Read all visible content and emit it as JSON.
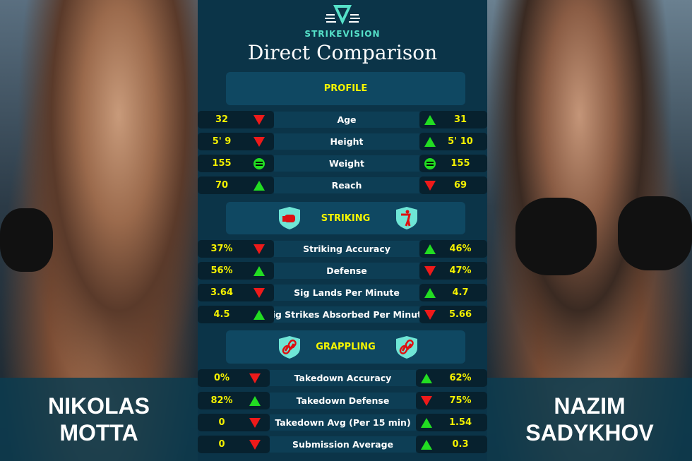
{
  "brand": "STRIKEVISION",
  "title": "Direct Comparison",
  "fighters": {
    "left": {
      "first": "NIKOLAS",
      "last": "MOTTA"
    },
    "right": {
      "first": "NAZIM",
      "last": "SADYKHOV"
    }
  },
  "colors": {
    "panel": "#0b3448",
    "accent": "#55e0c8",
    "value": "#f3f000",
    "better": "#22dd22",
    "worse": "#ee1a1a"
  },
  "sections": [
    {
      "title": "PROFILE",
      "icons": [],
      "rows": [
        {
          "label": "Age",
          "left": "32",
          "left_ind": "down",
          "right": "31",
          "right_ind": "up"
        },
        {
          "label": "Height",
          "left": "5' 9",
          "left_ind": "down",
          "right": "5' 10",
          "right_ind": "up"
        },
        {
          "label": "Weight",
          "left": "155",
          "left_ind": "equal",
          "right": "155",
          "right_ind": "equal"
        },
        {
          "label": "Reach",
          "left": "70",
          "left_ind": "up",
          "right": "69",
          "right_ind": "down"
        }
      ]
    },
    {
      "title": "STRIKING",
      "icons": [
        "boxing-glove-icon",
        "punching-figure-icon"
      ],
      "rows": [
        {
          "label": "Striking Accuracy",
          "left": "37%",
          "left_ind": "down",
          "right": "46%",
          "right_ind": "up"
        },
        {
          "label": "Defense",
          "left": "56%",
          "left_ind": "up",
          "right": "47%",
          "right_ind": "down"
        },
        {
          "label": "Sig Lands Per Minute",
          "left": "3.64",
          "left_ind": "down",
          "right": "4.7",
          "right_ind": "up"
        },
        {
          "label": "Sig Strikes Absorbed Per Minute",
          "left": "4.5",
          "left_ind": "up",
          "right": "5.66",
          "right_ind": "down"
        }
      ]
    },
    {
      "title": "GRAPPLING",
      "icons": [
        "chain-link-icon",
        "chain-link-icon"
      ],
      "rows": [
        {
          "label": "Takedown Accuracy",
          "left": "0%",
          "left_ind": "down",
          "right": "62%",
          "right_ind": "up"
        },
        {
          "label": "Takedown Defense",
          "left": "82%",
          "left_ind": "up",
          "right": "75%",
          "right_ind": "down"
        },
        {
          "label": "Takedown Avg (Per 15 min)",
          "left": "0",
          "left_ind": "down",
          "right": "1.54",
          "right_ind": "up"
        },
        {
          "label": "Submission Average",
          "left": "0",
          "left_ind": "down",
          "right": "0.3",
          "right_ind": "up"
        }
      ]
    }
  ]
}
